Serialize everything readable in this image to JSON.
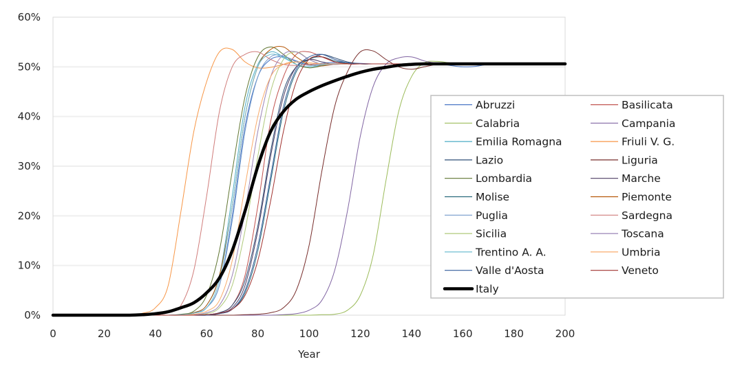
{
  "chart_data": {
    "type": "line",
    "title": "",
    "xlabel": "Year",
    "ylabel": "",
    "xlim": [
      0,
      200
    ],
    "ylim": [
      0,
      0.6
    ],
    "x_ticks": [
      "0",
      "20",
      "40",
      "60",
      "80",
      "100",
      "120",
      "140",
      "160",
      "180",
      "200"
    ],
    "y_ticks": [
      "0%",
      "10%",
      "20%",
      "30%",
      "40%",
      "50%",
      "60%"
    ],
    "grid": "horizontal",
    "legend_position": "right",
    "x": [
      0,
      5,
      10,
      15,
      20,
      25,
      30,
      35,
      40,
      45,
      50,
      55,
      60,
      65,
      70,
      75,
      80,
      85,
      90,
      95,
      100,
      105,
      110,
      115,
      120,
      125,
      130,
      135,
      140,
      145,
      150,
      155,
      160,
      165,
      170,
      175,
      180,
      185,
      190,
      195,
      200
    ],
    "series": [
      {
        "name": "Abruzzi",
        "color": "#4472c4",
        "width": 1,
        "values": [
          0,
          0,
          0,
          0,
          0,
          0,
          0,
          0,
          0,
          0,
          0.001,
          0.004,
          0.015,
          0.06,
          0.2,
          0.38,
          0.48,
          0.515,
          0.52,
          0.512,
          0.505,
          0.507,
          0.509,
          0.508,
          0.507,
          0.506,
          0.506,
          0.506,
          0.506,
          0.506,
          0.507,
          0.503,
          0.5,
          0.501,
          0.505,
          0.506,
          0.506,
          0.506,
          0.506,
          0.506,
          0.506
        ]
      },
      {
        "name": "Basilicata",
        "color": "#c0504d",
        "width": 1,
        "values": [
          0,
          0,
          0,
          0,
          0,
          0,
          0,
          0,
          0,
          0,
          0,
          0,
          0.001,
          0.005,
          0.02,
          0.08,
          0.22,
          0.39,
          0.48,
          0.525,
          0.53,
          0.52,
          0.51,
          0.506,
          0.506,
          0.506,
          0.506,
          0.506,
          0.506,
          0.506,
          0.506,
          0.506,
          0.506,
          0.506,
          0.506,
          0.506,
          0.506,
          0.506,
          0.506,
          0.506,
          0.506
        ]
      },
      {
        "name": "Calabria",
        "color": "#9bbb59",
        "width": 1,
        "values": [
          0,
          0,
          0,
          0,
          0,
          0,
          0,
          0,
          0,
          0,
          0,
          0,
          0,
          0,
          0,
          0,
          0,
          0,
          0,
          0,
          0,
          0.001,
          0.002,
          0.01,
          0.04,
          0.12,
          0.27,
          0.41,
          0.48,
          0.508,
          0.511,
          0.508,
          0.506,
          0.506,
          0.506,
          0.506,
          0.506,
          0.506,
          0.506,
          0.506,
          0.506
        ]
      },
      {
        "name": "Campania",
        "color": "#8064a2",
        "width": 1,
        "values": [
          0,
          0,
          0,
          0,
          0,
          0,
          0,
          0,
          0,
          0,
          0,
          0,
          0,
          0,
          0,
          0,
          0,
          0,
          0.001,
          0.003,
          0.01,
          0.03,
          0.09,
          0.21,
          0.36,
          0.46,
          0.505,
          0.518,
          0.52,
          0.512,
          0.507,
          0.506,
          0.506,
          0.506,
          0.506,
          0.506,
          0.506,
          0.506,
          0.506,
          0.506,
          0.506
        ]
      },
      {
        "name": "Emilia Romagna",
        "color": "#4bacc6",
        "width": 1,
        "values": [
          0,
          0,
          0,
          0,
          0,
          0,
          0,
          0,
          0,
          0,
          0.001,
          0.005,
          0.02,
          0.08,
          0.24,
          0.42,
          0.505,
          0.53,
          0.52,
          0.505,
          0.5,
          0.503,
          0.506,
          0.507,
          0.506,
          0.506,
          0.506,
          0.506,
          0.506,
          0.506,
          0.506,
          0.506,
          0.506,
          0.506,
          0.506,
          0.506,
          0.506,
          0.506,
          0.506,
          0.506,
          0.506
        ]
      },
      {
        "name": "Friuli V. G.",
        "color": "#f79646",
        "width": 1,
        "values": [
          0,
          0,
          0,
          0,
          0,
          0,
          0,
          0.004,
          0.015,
          0.06,
          0.21,
          0.37,
          0.47,
          0.53,
          0.535,
          0.51,
          0.498,
          0.499,
          0.505,
          0.51,
          0.508,
          0.506,
          0.506,
          0.506,
          0.506,
          0.506,
          0.506,
          0.506,
          0.506,
          0.506,
          0.506,
          0.506,
          0.506,
          0.506,
          0.506,
          0.506,
          0.506,
          0.506,
          0.506,
          0.506,
          0.506
        ]
      },
      {
        "name": "Lazio",
        "color": "#2c4d75",
        "width": 1,
        "values": [
          0,
          0,
          0,
          0,
          0,
          0,
          0,
          0,
          0,
          0,
          0,
          0,
          0.001,
          0.005,
          0.02,
          0.07,
          0.18,
          0.33,
          0.45,
          0.5,
          0.515,
          0.525,
          0.518,
          0.51,
          0.506,
          0.506,
          0.506,
          0.506,
          0.506,
          0.506,
          0.506,
          0.506,
          0.506,
          0.506,
          0.506,
          0.506,
          0.506,
          0.506,
          0.506,
          0.506,
          0.506
        ]
      },
      {
        "name": "Liguria",
        "color": "#772c2a",
        "width": 1,
        "values": [
          0,
          0,
          0,
          0,
          0,
          0,
          0,
          0,
          0,
          0,
          0,
          0,
          0,
          0,
          0,
          0.001,
          0.002,
          0.005,
          0.015,
          0.05,
          0.14,
          0.29,
          0.42,
          0.49,
          0.53,
          0.532,
          0.515,
          0.5,
          0.495,
          0.5,
          0.505,
          0.506,
          0.506,
          0.506,
          0.506,
          0.506,
          0.506,
          0.506,
          0.506,
          0.506,
          0.506
        ]
      },
      {
        "name": "Lombardia",
        "color": "#5f7530",
        "width": 1,
        "values": [
          0,
          0,
          0,
          0,
          0,
          0,
          0,
          0,
          0,
          0,
          0.002,
          0.008,
          0.04,
          0.13,
          0.29,
          0.44,
          0.52,
          0.54,
          0.525,
          0.505,
          0.498,
          0.502,
          0.506,
          0.507,
          0.506,
          0.506,
          0.506,
          0.506,
          0.506,
          0.506,
          0.506,
          0.506,
          0.506,
          0.506,
          0.506,
          0.506,
          0.506,
          0.506,
          0.506,
          0.506,
          0.506
        ]
      },
      {
        "name": "Marche",
        "color": "#4d3b62",
        "width": 1,
        "values": [
          0,
          0,
          0,
          0,
          0,
          0,
          0,
          0,
          0,
          0,
          0,
          0,
          0.001,
          0.004,
          0.015,
          0.06,
          0.17,
          0.32,
          0.44,
          0.5,
          0.515,
          0.51,
          0.505,
          0.506,
          0.506,
          0.506,
          0.506,
          0.506,
          0.506,
          0.506,
          0.506,
          0.506,
          0.506,
          0.506,
          0.506,
          0.506,
          0.506,
          0.506,
          0.506,
          0.506,
          0.506
        ]
      },
      {
        "name": "Molise",
        "color": "#276a7c",
        "width": 1,
        "values": [
          0,
          0,
          0,
          0,
          0,
          0,
          0,
          0,
          0,
          0,
          0,
          0,
          0,
          0.003,
          0.012,
          0.045,
          0.13,
          0.27,
          0.41,
          0.49,
          0.515,
          0.52,
          0.512,
          0.508,
          0.506,
          0.506,
          0.506,
          0.506,
          0.506,
          0.506,
          0.506,
          0.506,
          0.506,
          0.506,
          0.506,
          0.506,
          0.506,
          0.506,
          0.506,
          0.506,
          0.506
        ]
      },
      {
        "name": "Piemonte",
        "color": "#b65708",
        "width": 1,
        "values": [
          0,
          0,
          0,
          0,
          0,
          0,
          0,
          0,
          0,
          0,
          0.001,
          0.005,
          0.02,
          0.08,
          0.22,
          0.4,
          0.5,
          0.535,
          0.54,
          0.52,
          0.505,
          0.502,
          0.505,
          0.507,
          0.506,
          0.506,
          0.506,
          0.506,
          0.506,
          0.506,
          0.506,
          0.506,
          0.506,
          0.506,
          0.506,
          0.506,
          0.506,
          0.506,
          0.506,
          0.506,
          0.506
        ]
      },
      {
        "name": "Puglia",
        "color": "#729aca",
        "width": 1,
        "values": [
          0,
          0,
          0,
          0,
          0,
          0,
          0,
          0,
          0,
          0,
          0.001,
          0.004,
          0.015,
          0.06,
          0.19,
          0.37,
          0.48,
          0.52,
          0.522,
          0.51,
          0.503,
          0.505,
          0.507,
          0.506,
          0.506,
          0.506,
          0.506,
          0.506,
          0.506,
          0.506,
          0.506,
          0.506,
          0.506,
          0.506,
          0.506,
          0.506,
          0.506,
          0.506,
          0.506,
          0.506,
          0.506
        ]
      },
      {
        "name": "Sardegna",
        "color": "#d07c7a",
        "width": 1,
        "values": [
          0,
          0,
          0,
          0,
          0,
          0,
          0,
          0,
          0.001,
          0.005,
          0.02,
          0.09,
          0.24,
          0.41,
          0.5,
          0.525,
          0.53,
          0.515,
          0.505,
          0.503,
          0.505,
          0.506,
          0.506,
          0.506,
          0.506,
          0.506,
          0.506,
          0.506,
          0.506,
          0.506,
          0.506,
          0.506,
          0.506,
          0.506,
          0.506,
          0.506,
          0.506,
          0.506,
          0.506,
          0.506,
          0.506
        ]
      },
      {
        "name": "Sicilia",
        "color": "#afc97a",
        "width": 1,
        "values": [
          0,
          0,
          0,
          0,
          0,
          0,
          0,
          0,
          0,
          0,
          0,
          0.001,
          0.003,
          0.015,
          0.06,
          0.17,
          0.32,
          0.45,
          0.515,
          0.53,
          0.515,
          0.505,
          0.505,
          0.506,
          0.506,
          0.506,
          0.506,
          0.506,
          0.506,
          0.506,
          0.506,
          0.506,
          0.506,
          0.506,
          0.506,
          0.506,
          0.506,
          0.506,
          0.506,
          0.506,
          0.506
        ]
      },
      {
        "name": "Toscana",
        "color": "#9983b5",
        "width": 1,
        "values": [
          0,
          0,
          0,
          0,
          0,
          0,
          0,
          0,
          0,
          0,
          0,
          0.001,
          0.005,
          0.02,
          0.08,
          0.21,
          0.37,
          0.48,
          0.525,
          0.53,
          0.515,
          0.505,
          0.505,
          0.506,
          0.506,
          0.506,
          0.506,
          0.506,
          0.506,
          0.506,
          0.506,
          0.506,
          0.506,
          0.506,
          0.506,
          0.506,
          0.506,
          0.506,
          0.506,
          0.506,
          0.506
        ]
      },
      {
        "name": "Trentino A. A.",
        "color": "#6fbdd1",
        "width": 1,
        "values": [
          0,
          0,
          0,
          0,
          0,
          0,
          0,
          0,
          0,
          0,
          0.001,
          0.004,
          0.015,
          0.07,
          0.22,
          0.4,
          0.5,
          0.525,
          0.518,
          0.505,
          0.5,
          0.504,
          0.506,
          0.506,
          0.506,
          0.506,
          0.506,
          0.506,
          0.506,
          0.506,
          0.506,
          0.506,
          0.506,
          0.506,
          0.506,
          0.506,
          0.506,
          0.506,
          0.506,
          0.506,
          0.506
        ]
      },
      {
        "name": "Umbria",
        "color": "#f9ab6b",
        "width": 1,
        "values": [
          0,
          0,
          0,
          0,
          0,
          0,
          0,
          0,
          0,
          0,
          0,
          0.002,
          0.008,
          0.03,
          0.11,
          0.26,
          0.4,
          0.48,
          0.505,
          0.51,
          0.508,
          0.506,
          0.506,
          0.506,
          0.506,
          0.506,
          0.506,
          0.506,
          0.506,
          0.506,
          0.506,
          0.506,
          0.506,
          0.506,
          0.506,
          0.506,
          0.506,
          0.506,
          0.506,
          0.506,
          0.506
        ]
      },
      {
        "name": "Valle d'Aosta",
        "color": "#335c9c",
        "width": 1,
        "values": [
          0,
          0,
          0,
          0,
          0,
          0,
          0,
          0,
          0,
          0,
          0,
          0,
          0,
          0.003,
          0.012,
          0.05,
          0.14,
          0.28,
          0.42,
          0.495,
          0.52,
          0.525,
          0.515,
          0.508,
          0.506,
          0.506,
          0.506,
          0.506,
          0.506,
          0.506,
          0.506,
          0.506,
          0.506,
          0.506,
          0.506,
          0.506,
          0.506,
          0.506,
          0.506,
          0.506,
          0.506
        ]
      },
      {
        "name": "Veneto",
        "color": "#a0312e",
        "width": 1,
        "values": [
          0,
          0,
          0,
          0,
          0,
          0,
          0,
          0,
          0,
          0,
          0,
          0,
          0.001,
          0.004,
          0.012,
          0.04,
          0.11,
          0.23,
          0.37,
          0.47,
          0.515,
          0.52,
          0.51,
          0.506,
          0.506,
          0.506,
          0.506,
          0.506,
          0.506,
          0.506,
          0.506,
          0.506,
          0.506,
          0.506,
          0.506,
          0.506,
          0.506,
          0.506,
          0.506,
          0.506,
          0.506
        ]
      },
      {
        "name": "Italy",
        "color": "#000000",
        "width": 4.5,
        "values": [
          0,
          0,
          0,
          0,
          0,
          0,
          0,
          0.001,
          0.003,
          0.007,
          0.015,
          0.025,
          0.045,
          0.075,
          0.13,
          0.21,
          0.3,
          0.37,
          0.41,
          0.435,
          0.45,
          0.462,
          0.472,
          0.481,
          0.489,
          0.495,
          0.499,
          0.503,
          0.505,
          0.506,
          0.506,
          0.506,
          0.506,
          0.506,
          0.506,
          0.506,
          0.506,
          0.506,
          0.506,
          0.506,
          0.506
        ]
      }
    ]
  }
}
